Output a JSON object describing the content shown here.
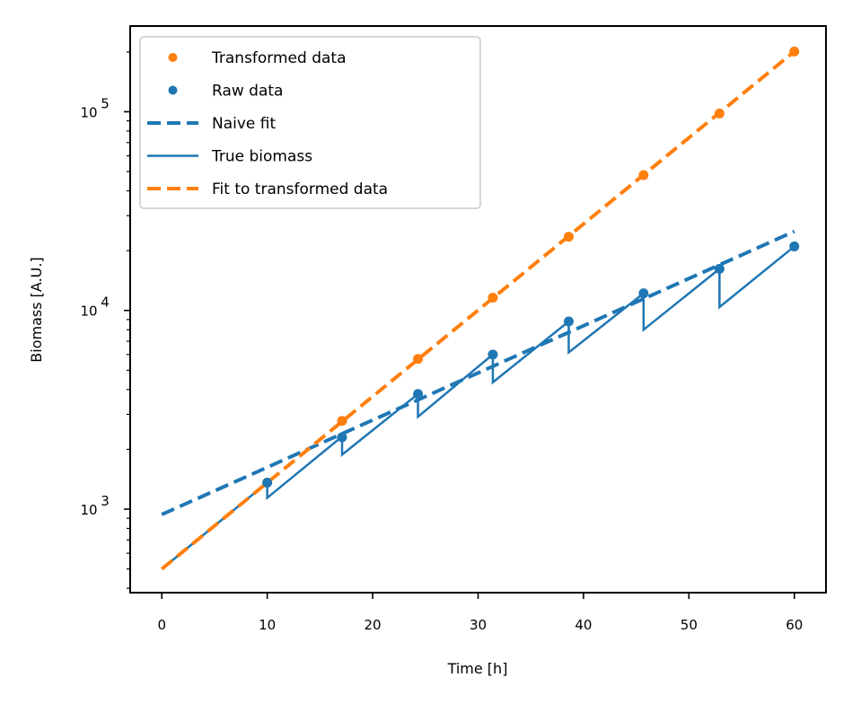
{
  "chart_data": {
    "type": "line",
    "title": "",
    "xlabel": "Time [h]",
    "ylabel": "Biomass [A.U.]",
    "xlim": [
      -3,
      63
    ],
    "ylim": [
      380,
      270000
    ],
    "yscale": "log",
    "grid": false,
    "legend_position": "top-left",
    "x_ticks": [
      0,
      10,
      20,
      30,
      40,
      50,
      60
    ],
    "y_ticks": [
      {
        "value": 1000,
        "base": "10",
        "exp": "3"
      },
      {
        "value": 10000,
        "base": "10",
        "exp": "4"
      },
      {
        "value": 100000,
        "base": "10",
        "exp": "5"
      }
    ],
    "colors": {
      "orange": "#ff7f0e",
      "blue": "#1f77b4"
    },
    "series": [
      {
        "name": "Transformed data",
        "kind": "scatter",
        "color": "#ff7f0e",
        "x": [
          10.0,
          17.1,
          24.3,
          31.4,
          38.6,
          45.7,
          52.9,
          60.0
        ],
        "y": [
          1360,
          2780,
          5700,
          11600,
          23500,
          48000,
          98000,
          201000
        ]
      },
      {
        "name": "Raw data",
        "kind": "scatter",
        "color": "#1f77b4",
        "x": [
          10.0,
          17.1,
          24.3,
          31.4,
          38.6,
          45.7,
          52.9,
          60.0
        ],
        "y": [
          1360,
          2300,
          3800,
          6000,
          8800,
          12200,
          16200,
          21000
        ]
      },
      {
        "name": "Naive fit",
        "kind": "dashed-line",
        "color": "#1f77b4",
        "x": [
          0,
          60
        ],
        "y": [
          940,
          25000
        ]
      },
      {
        "name": "True biomass",
        "kind": "line",
        "color": "#1f77b4",
        "x": [
          0,
          10.0,
          10.0,
          17.1,
          17.1,
          24.3,
          24.3,
          31.4,
          31.4,
          38.6,
          38.6,
          45.7,
          45.7,
          52.9,
          52.9,
          60.0
        ],
        "y": [
          500,
          1360,
          1140,
          2320,
          1880,
          3800,
          2920,
          6000,
          4350,
          8800,
          6150,
          12200,
          8000,
          16200,
          10400,
          21000
        ]
      },
      {
        "name": "Fit to transformed data",
        "kind": "dashed-line",
        "color": "#ff7f0e",
        "x": [
          0,
          60
        ],
        "y": [
          500,
          201000
        ]
      }
    ]
  }
}
